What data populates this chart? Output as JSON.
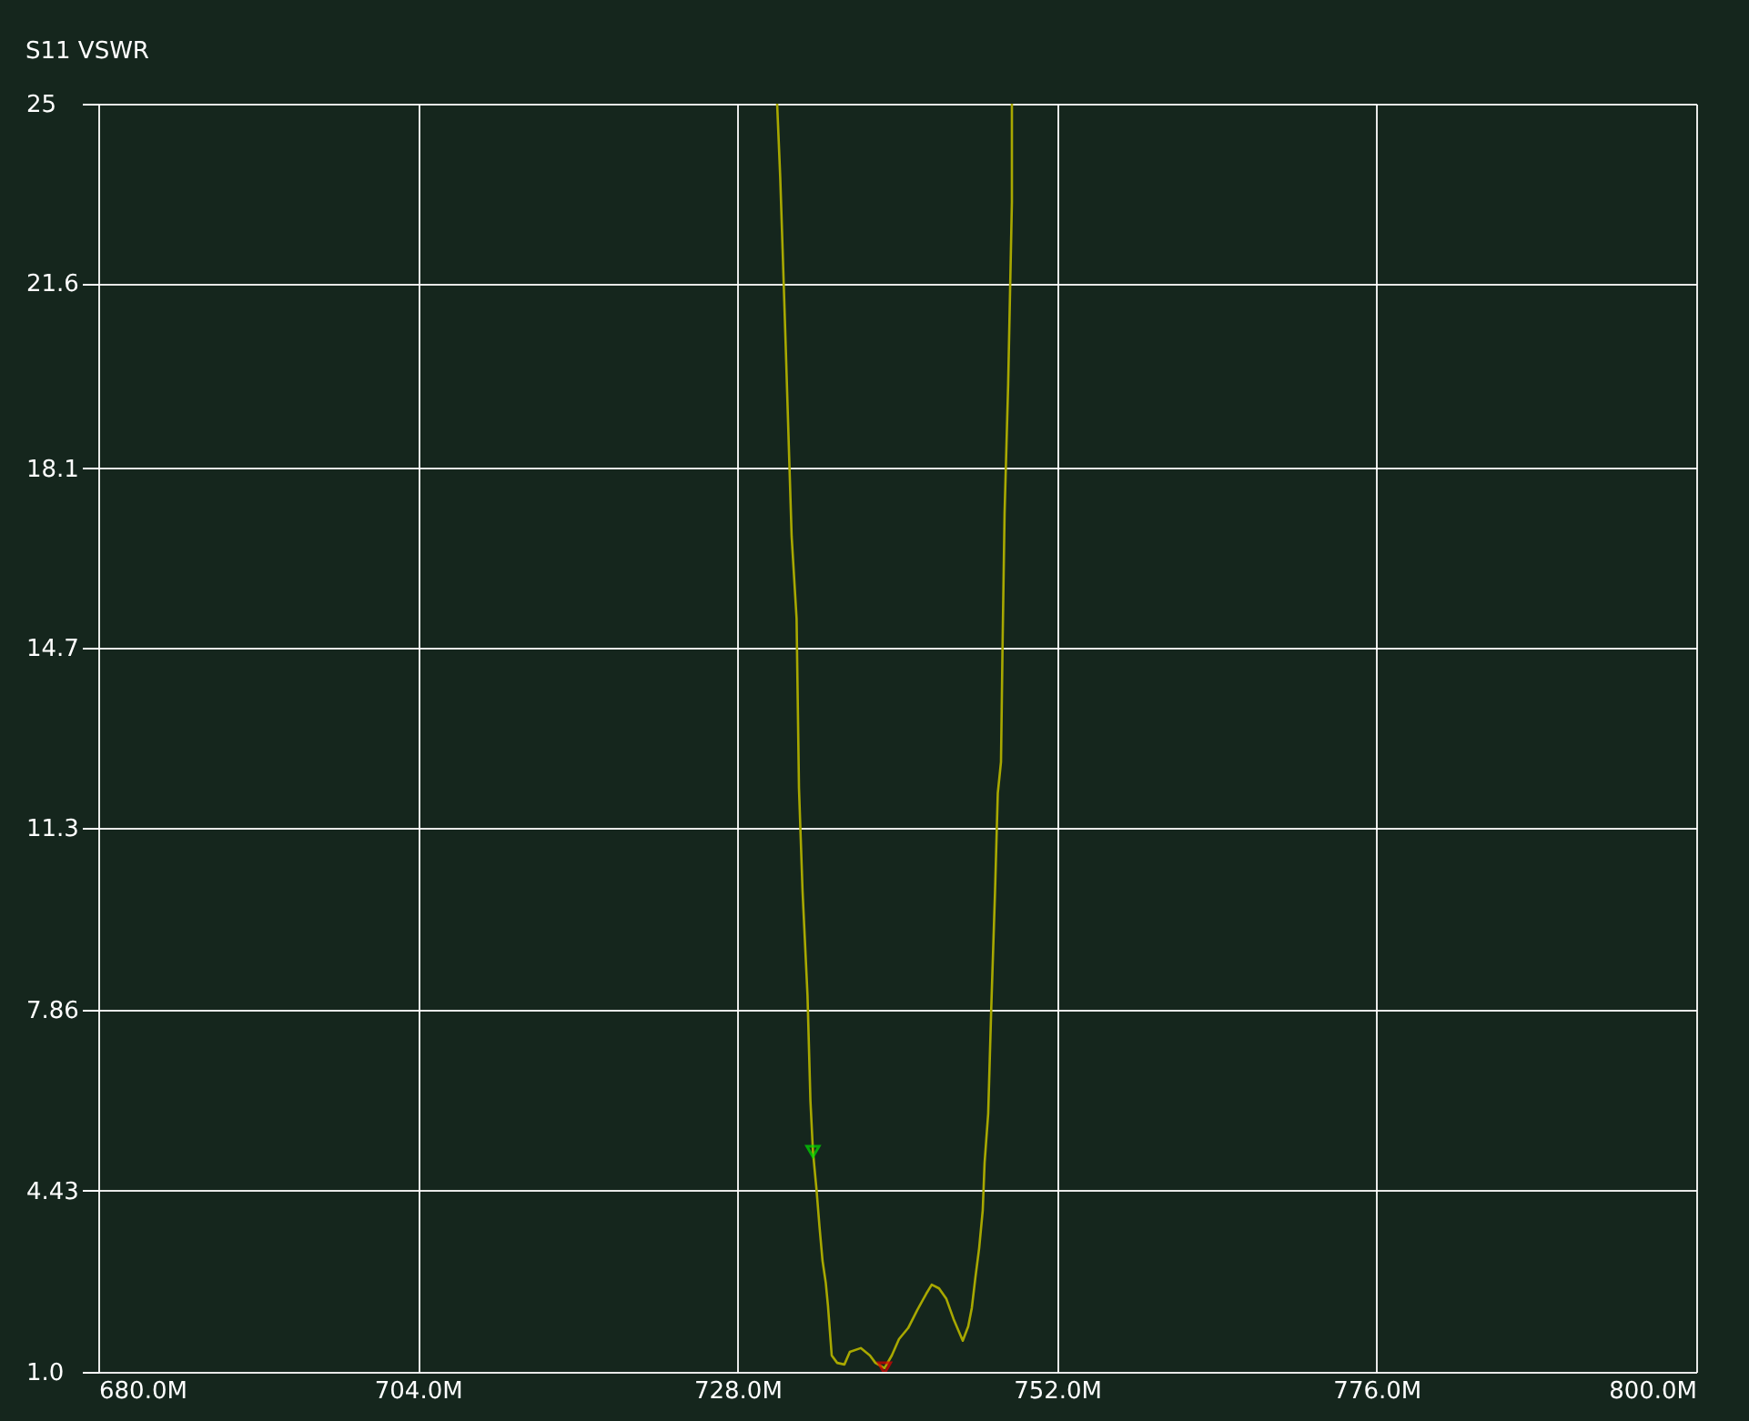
{
  "chart_data": {
    "type": "line",
    "title": "S11 VSWR",
    "xlim": [
      680,
      800
    ],
    "xticks": [
      {
        "value": 680,
        "label": "680.0M"
      },
      {
        "value": 704,
        "label": "704.0M"
      },
      {
        "value": 728,
        "label": "728.0M"
      },
      {
        "value": 752,
        "label": "752.0M"
      },
      {
        "value": 776,
        "label": "776.0M"
      },
      {
        "value": 800,
        "label": "800.0M"
      }
    ],
    "ylim": [
      1,
      25
    ],
    "yticks": [
      {
        "value": 1,
        "label": "1.0"
      },
      {
        "value": 4.43,
        "label": "4.43"
      },
      {
        "value": 7.86,
        "label": "7.86"
      },
      {
        "value": 11.3,
        "label": "11.3"
      },
      {
        "value": 14.7,
        "label": "14.7"
      },
      {
        "value": 18.1,
        "label": "18.1"
      },
      {
        "value": 21.6,
        "label": "21.6"
      },
      25
    ],
    "grid": true,
    "legend": false,
    "series": [
      {
        "color": "#a8a800",
        "marker": "none",
        "x": [
          730.98,
          731.21,
          731.39,
          731.62,
          731.84,
          732.07,
          732.44,
          732.62,
          732.89,
          733.26,
          733.48,
          733.67,
          733.94,
          734.16,
          734.39,
          734.63,
          734.8,
          735.08,
          735.49,
          736.03,
          736.44,
          737.26,
          737.95,
          738.36,
          739.04,
          739.59,
          740.13,
          740.82,
          741.5,
          742.18,
          742.59,
          743.14,
          743.69,
          744.23,
          744.92,
          745.33,
          745.6,
          745.87,
          746.15,
          746.42,
          746.56,
          746.83,
          747.06,
          747.34,
          747.55,
          747.79,
          747.92,
          748.06,
          748.33,
          748.61,
          748.61
        ],
        "values": [
          25.0,
          23.62,
          22.25,
          20.45,
          18.66,
          16.81,
          15.26,
          12.05,
          10.09,
          8.13,
          6.13,
          5.17,
          4.44,
          3.75,
          3.1,
          2.69,
          2.24,
          1.31,
          1.17,
          1.14,
          1.38,
          1.45,
          1.31,
          1.17,
          1.07,
          1.31,
          1.62,
          1.83,
          2.17,
          2.48,
          2.65,
          2.58,
          2.38,
          2.0,
          1.59,
          1.86,
          2.21,
          2.79,
          3.34,
          4.06,
          4.96,
          5.89,
          7.89,
          10.06,
          11.95,
          12.54,
          14.95,
          17.25,
          19.7,
          23.14,
          25.0
        ]
      },
      {
        "type": "scatter",
        "color": "#00e000",
        "marker": "triangle",
        "x": [
          733.67
        ],
        "values": [
          5.17
        ]
      },
      {
        "type": "scatter",
        "color": "#e00000",
        "marker": "triangle",
        "x": [
          739.04
        ],
        "values": [
          1.07
        ]
      }
    ]
  }
}
